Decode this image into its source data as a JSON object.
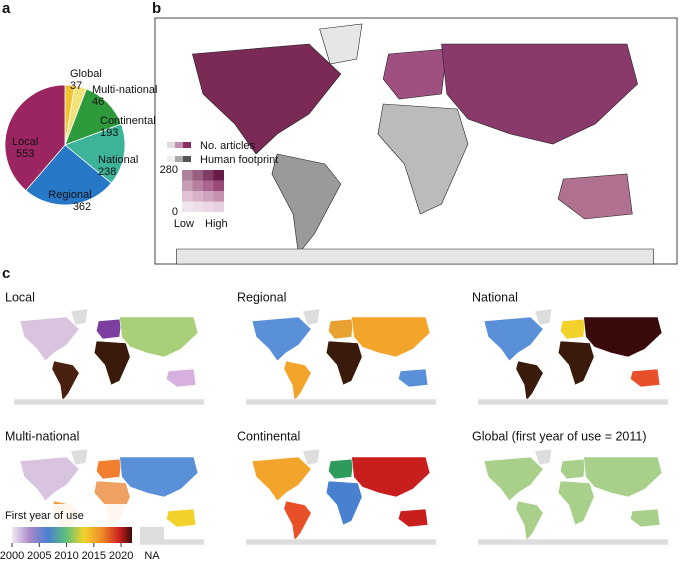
{
  "chart_data": {
    "type": "pie",
    "panel": "a",
    "categories": [
      "Global",
      "Multi-national",
      "Continental",
      "National",
      "Regional",
      "Local"
    ],
    "values": [
      37,
      46,
      193,
      238,
      362,
      553
    ],
    "colors": [
      "#f2c12e",
      "#f3e27a",
      "#2e9a3c",
      "#3db39a",
      "#2878c8",
      "#9b2560"
    ]
  },
  "map_b": {
    "panel": "b",
    "legend": {
      "articles": "No. articles",
      "footprint": "Human footprint",
      "articles_ticks": [
        0,
        280
      ],
      "low": "Low",
      "high": "High"
    }
  },
  "panel_c": {
    "panel": "c",
    "maps": [
      "Local",
      "Regional",
      "National",
      "Multi-national",
      "Continental",
      "Global (first year of use = 2011)"
    ],
    "colorbar": {
      "title": "First year of use",
      "range": [
        2000,
        2022
      ],
      "ticks": [
        2000,
        2005,
        2010,
        2015,
        2020
      ],
      "na_label": "NA"
    }
  }
}
